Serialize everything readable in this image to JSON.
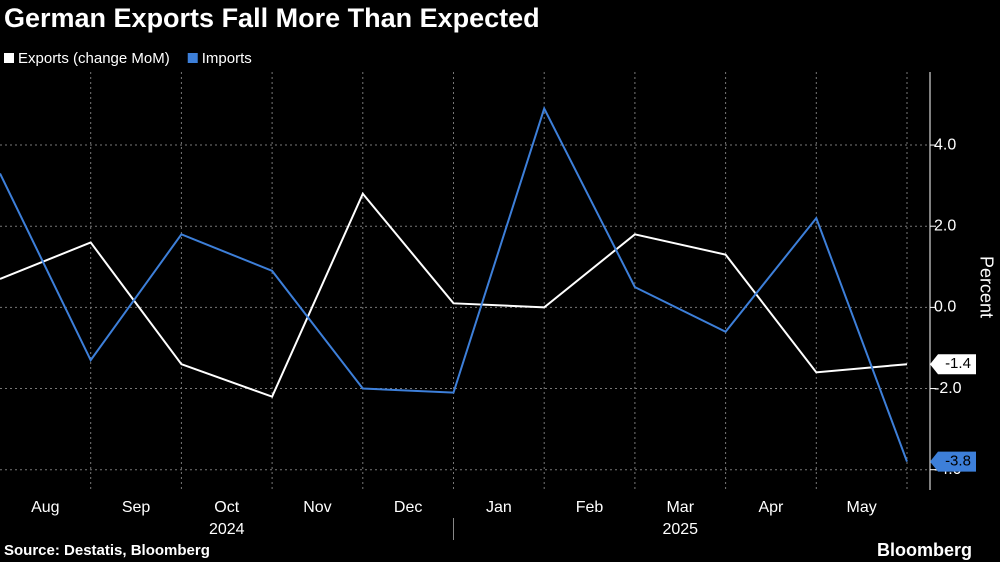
{
  "chart_data": {
    "type": "line",
    "title": "German Exports Fall More Than Expected",
    "categories": [
      null,
      "Aug",
      "Sep",
      "Oct",
      "Nov",
      "Dec",
      "Jan",
      "Feb",
      "Mar",
      "Apr",
      "May"
    ],
    "years": [
      "2024",
      "2025"
    ],
    "series": [
      {
        "name": "Exports (change MoM)",
        "color": "#ffffff",
        "values": [
          0.7,
          1.6,
          -1.4,
          -2.2,
          2.8,
          0.1,
          0.0,
          1.8,
          1.3,
          -1.6,
          -1.4
        ]
      },
      {
        "name": "Imports",
        "color": "#3d7fd9",
        "values": [
          3.3,
          -1.3,
          1.8,
          0.9,
          -2.0,
          -2.1,
          4.9,
          0.5,
          -0.6,
          2.2,
          -3.8
        ]
      }
    ],
    "ylim": [
      -4.5,
      5.8
    ],
    "yticks": [
      {
        "value": -4,
        "label": "-4.0"
      },
      {
        "value": -2,
        "label": "-2.0"
      },
      {
        "value": 0,
        "label": "0.0"
      },
      {
        "value": 2,
        "label": "2.0"
      },
      {
        "value": 4,
        "label": "4.0"
      }
    ],
    "y_label": "Percent",
    "grid": true,
    "source": "Source: Destatis, Bloomberg",
    "brand": "Bloomberg"
  }
}
